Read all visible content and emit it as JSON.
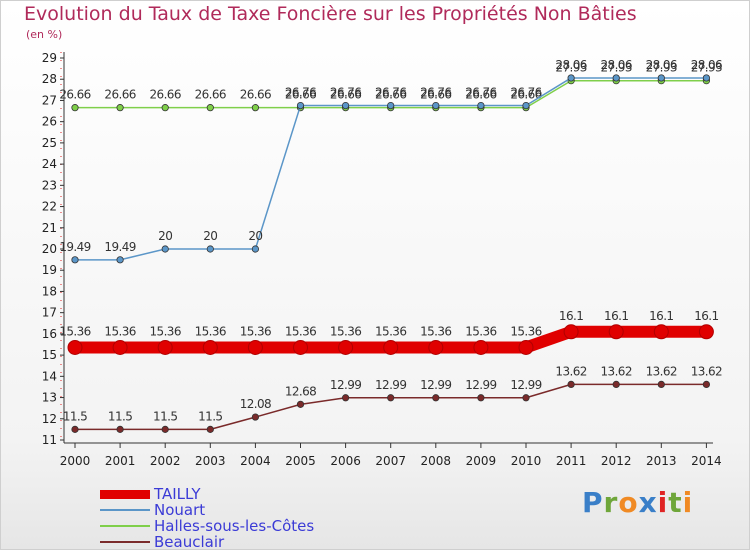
{
  "title": "Evolution du Taux de Taxe Foncière sur les Propriétés Non Bâties",
  "subtitle": "(en %)",
  "logo": {
    "text": "Proxiti",
    "colors": [
      "#3a7fc8",
      "#6fa63a",
      "#f08a24",
      "#3a7fc8",
      "#e02424",
      "#6fa63a",
      "#f08a24"
    ]
  },
  "chart_data": {
    "type": "line",
    "title": "Evolution du Taux de Taxe Foncière sur les Propriétés Non Bâties",
    "ylabel": "(en %)",
    "xlabel": "",
    "x": [
      2000,
      2001,
      2002,
      2003,
      2004,
      2005,
      2006,
      2007,
      2008,
      2009,
      2010,
      2011,
      2012,
      2013,
      2014
    ],
    "ylim": [
      11,
      29
    ],
    "yticks": [
      11,
      12,
      13,
      14,
      15,
      16,
      17,
      18,
      19,
      20,
      21,
      22,
      23,
      24,
      25,
      26,
      27,
      28,
      29
    ],
    "grid": false,
    "legend_position": "bottom-left",
    "series": [
      {
        "name": "TAILLY",
        "color": "#e00000",
        "values": [
          15.36,
          15.36,
          15.36,
          15.36,
          15.36,
          15.36,
          15.36,
          15.36,
          15.36,
          15.36,
          15.36,
          16.1,
          16.1,
          16.1,
          16.1
        ],
        "labels": [
          "15.36",
          "15.36",
          "15.36",
          "15.36",
          "15.36",
          "15.36",
          "15.36",
          "15.36",
          "15.36",
          "15.36",
          "15.36",
          "16.1",
          "16.1",
          "16.1",
          "16.1"
        ]
      },
      {
        "name": "Nouart",
        "color": "#5b96c8",
        "values": [
          19.49,
          19.49,
          20,
          20,
          20,
          26.76,
          26.76,
          26.76,
          26.76,
          26.76,
          26.76,
          28.06,
          28.06,
          28.06,
          28.06
        ],
        "labels": [
          "19.49",
          "19.49",
          "20",
          "20",
          "20",
          "26.76",
          "26.76",
          "26.76",
          "26.76",
          "26.76",
          "26.76",
          "28.06",
          "28.06",
          "28.06",
          "28.06"
        ]
      },
      {
        "name": "Halles-sous-les-Côtes",
        "color": "#7fcf4a",
        "values": [
          26.66,
          26.66,
          26.66,
          26.66,
          26.66,
          26.66,
          26.66,
          26.66,
          26.66,
          26.66,
          26.66,
          27.93,
          27.93,
          27.93,
          27.93
        ],
        "labels": [
          "26.66",
          "26.66",
          "26.66",
          "26.66",
          "26.66",
          "26.66",
          "26.66",
          "26.66",
          "26.66",
          "26.66",
          "26.66",
          "27.93",
          "27.93",
          "27.93",
          "27.93"
        ]
      },
      {
        "name": "Beauclair",
        "color": "#7a2a2a",
        "values": [
          11.5,
          11.5,
          11.5,
          11.5,
          12.08,
          12.68,
          12.99,
          12.99,
          12.99,
          12.99,
          12.99,
          13.62,
          13.62,
          13.62,
          13.62
        ],
        "labels": [
          "11.5",
          "11.5",
          "11.5",
          "11.5",
          "12.08",
          "12.68",
          "12.99",
          "12.99",
          "12.99",
          "12.99",
          "12.99",
          "13.62",
          "13.62",
          "13.62",
          "13.62"
        ]
      }
    ]
  }
}
